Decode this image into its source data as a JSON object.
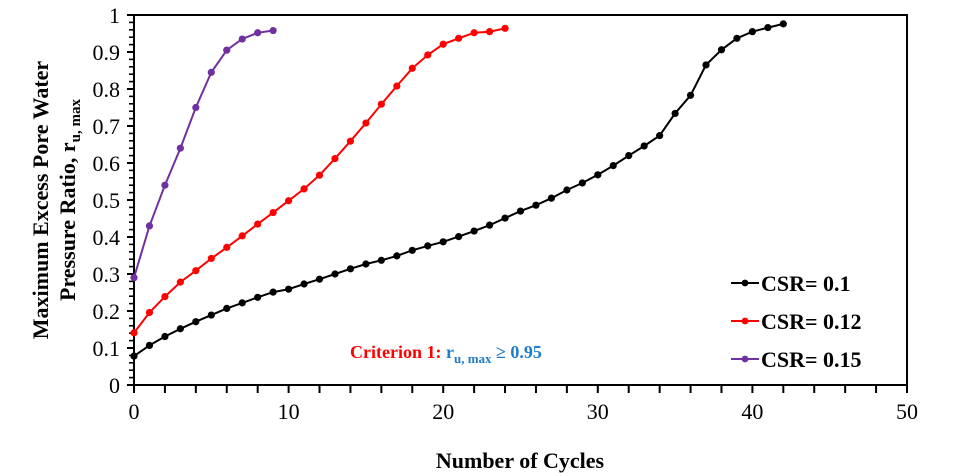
{
  "chart_data": {
    "type": "line",
    "title": "",
    "xlabel": "Number of Cycles",
    "ylabel_line1": "Maximum Excess Pore Water",
    "ylabel_line2": "Pressure Ratio, r",
    "ylabel_subscript": "u, max",
    "xlim": [
      0,
      50
    ],
    "ylim": [
      0,
      1
    ],
    "x_ticks": [
      "0",
      "10",
      "20",
      "30",
      "40",
      "50"
    ],
    "x_tick_values": [
      0,
      10,
      20,
      30,
      40,
      50
    ],
    "x_minor_step": 2,
    "y_ticks": [
      "0",
      "0.1",
      "0.2",
      "0.3",
      "0.4",
      "0.5",
      "0.6",
      "0.7",
      "0.8",
      "0.9",
      "1"
    ],
    "y_tick_values": [
      0,
      0.1,
      0.2,
      0.3,
      0.4,
      0.5,
      0.6,
      0.7,
      0.8,
      0.9,
      1.0
    ],
    "y_minor_step": 0.02,
    "grid": false,
    "legend_position": "bottom-right",
    "series": [
      {
        "name": "CSR= 0.1",
        "color": "#000000",
        "x": [
          0,
          1,
          2,
          3,
          4,
          5,
          6,
          7,
          8,
          9,
          10,
          11,
          12,
          13,
          14,
          15,
          16,
          17,
          18,
          19,
          20,
          21,
          22,
          23,
          24,
          25,
          26,
          27,
          28,
          29,
          30,
          31,
          32,
          33,
          34,
          35,
          36,
          37,
          38,
          39,
          40,
          41,
          42
        ],
        "values": [
          0.078,
          0.107,
          0.131,
          0.152,
          0.171,
          0.189,
          0.207,
          0.222,
          0.237,
          0.251,
          0.259,
          0.273,
          0.286,
          0.3,
          0.314,
          0.327,
          0.337,
          0.349,
          0.364,
          0.376,
          0.387,
          0.401,
          0.416,
          0.432,
          0.451,
          0.47,
          0.486,
          0.505,
          0.527,
          0.546,
          0.568,
          0.593,
          0.62,
          0.646,
          0.674,
          0.734,
          0.783,
          0.865,
          0.906,
          0.937,
          0.955,
          0.966,
          0.976
        ]
      },
      {
        "name": "CSR= 0.12",
        "color": "#ff0000",
        "x": [
          0,
          1,
          2,
          3,
          4,
          5,
          6,
          7,
          8,
          9,
          10,
          11,
          12,
          13,
          14,
          15,
          16,
          17,
          18,
          19,
          20,
          21,
          22,
          23,
          24
        ],
        "values": [
          0.141,
          0.196,
          0.239,
          0.278,
          0.309,
          0.342,
          0.372,
          0.403,
          0.435,
          0.466,
          0.498,
          0.53,
          0.567,
          0.612,
          0.659,
          0.708,
          0.759,
          0.808,
          0.856,
          0.892,
          0.921,
          0.937,
          0.952,
          0.955,
          0.964
        ]
      },
      {
        "name": "CSR= 0.15",
        "color": "#7030a0",
        "x": [
          0,
          1,
          2,
          3,
          4,
          5,
          6,
          7,
          8,
          9
        ],
        "values": [
          0.29,
          0.43,
          0.54,
          0.64,
          0.75,
          0.845,
          0.905,
          0.935,
          0.952,
          0.958
        ]
      }
    ],
    "annotation": {
      "label": "Criterion 1: ",
      "label_color": "#ff0000",
      "expr_main": "r",
      "expr_sub": "u, max",
      "expr_rest": " ≥ 0.95",
      "expr_color": "#1f7ccb"
    }
  }
}
